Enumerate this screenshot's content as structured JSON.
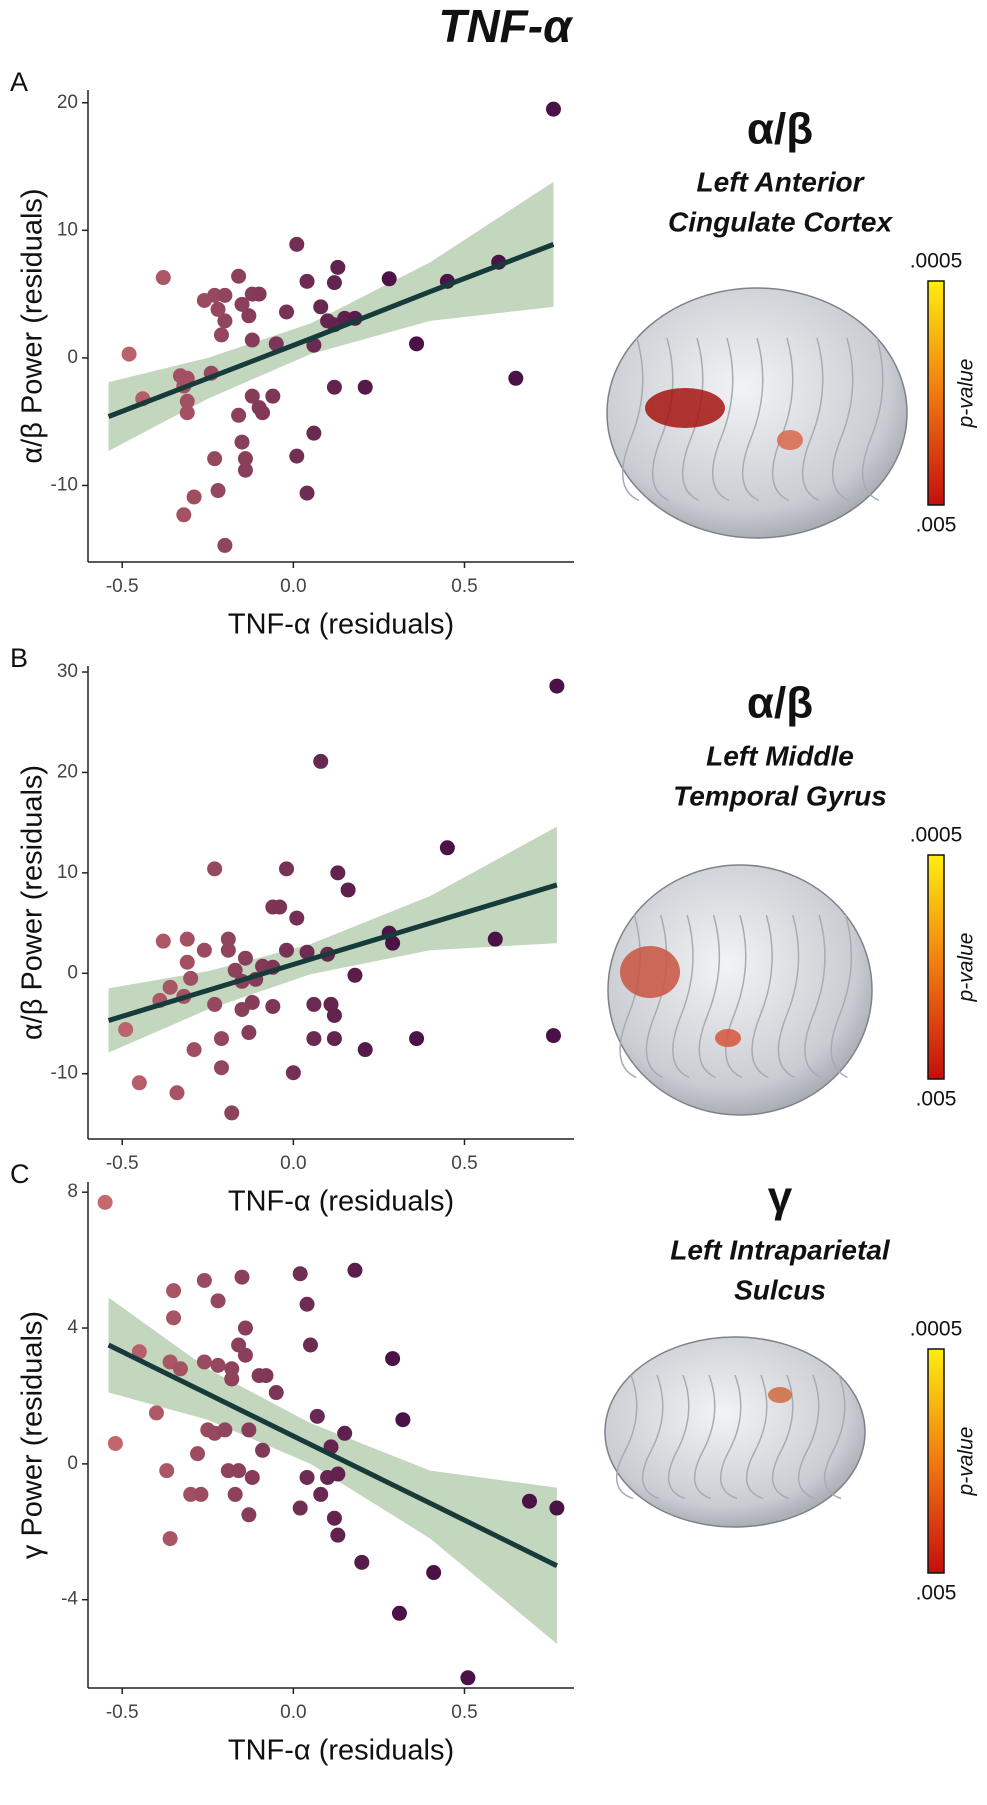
{
  "title": "TNF-α",
  "chart_data": [
    {
      "type": "scatter",
      "panel": "A",
      "x_label": "TNF-α (residuals)",
      "y_label": "α/β Power (residuals)",
      "xlim": [
        -0.6,
        0.82
      ],
      "ylim": [
        -16,
        21
      ],
      "xticks": [
        -0.5,
        {
          "value": 0,
          "label": "0.0"
        },
        0.5
      ],
      "yticks": [
        -10,
        0,
        10,
        20
      ],
      "color_low": "#cc6e70",
      "color_high": "#4a1246",
      "x": [
        0.76,
        -0.48,
        -0.38,
        -0.44,
        -0.33,
        -0.31,
        -0.32,
        -0.31,
        -0.31,
        -0.29,
        -0.32,
        -0.24,
        -0.23,
        -0.26,
        -0.2,
        -0.22,
        -0.2,
        -0.21,
        -0.16,
        -0.15,
        -0.12,
        -0.1,
        -0.13,
        -0.12,
        -0.23,
        -0.22,
        -0.2,
        -0.16,
        -0.15,
        -0.14,
        -0.14,
        -0.12,
        -0.1,
        -0.09,
        -0.06,
        -0.05,
        -0.02,
        0.01,
        0.01,
        0.04,
        0.04,
        0.06,
        0.06,
        0.08,
        0.1,
        0.12,
        0.13,
        0.12,
        0.15,
        0.18,
        0.12,
        0.21,
        0.28,
        0.36,
        0.45,
        0.6,
        0.65
      ],
      "y": [
        19.5,
        0.3,
        6.3,
        -3.2,
        -1.4,
        -1.6,
        -2.2,
        -3.4,
        -4.3,
        -10.9,
        -12.3,
        -1.2,
        4.9,
        4.5,
        4.9,
        3.8,
        2.9,
        1.8,
        6.4,
        4.2,
        5.0,
        5.0,
        3.3,
        1.4,
        -7.9,
        -10.4,
        -14.7,
        -4.5,
        -6.6,
        -7.9,
        -8.8,
        -3.0,
        -3.9,
        -4.3,
        -3.0,
        1.1,
        3.6,
        8.9,
        -7.7,
        -10.6,
        6.0,
        -5.9,
        1.0,
        4.0,
        2.9,
        5.9,
        7.1,
        2.6,
        3.1,
        3.1,
        -2.3,
        -2.3,
        6.2,
        1.1,
        6.0,
        7.5,
        -1.6
      ],
      "fit": {
        "x": [
          -0.54,
          -0.25,
          0.05,
          0.4,
          0.76
        ],
        "y": [
          -4.6,
          -1.6,
          1.5,
          5.2,
          8.9
        ],
        "lower": [
          -7.3,
          -3.2,
          0.3,
          2.9,
          4.0
        ],
        "upper": [
          -1.9,
          0.0,
          2.7,
          7.5,
          13.8
        ],
        "line_color": "#173b3b",
        "band_color": "#b9cfb3"
      },
      "brain": {
        "heading": "α/β",
        "region": [
          "Left Anterior",
          "Cingulate Cortex"
        ],
        "colorbar": {
          "top": ".0005",
          "bottom": ".005",
          "label": "p-value"
        }
      }
    },
    {
      "type": "scatter",
      "panel": "B",
      "x_label": "TNF-α (residuals)",
      "y_label": "α/β Power (residuals)",
      "xlim": [
        -0.6,
        0.82
      ],
      "ylim": [
        -16.5,
        30.6
      ],
      "xticks": [
        -0.5,
        {
          "value": 0,
          "label": "0.0"
        },
        0.5
      ],
      "yticks": [
        -10,
        0,
        10,
        20,
        30
      ],
      "color_low": "#cc6e70",
      "color_high": "#4a1246",
      "x": [
        0.77,
        0.08,
        -0.49,
        -0.45,
        -0.34,
        -0.39,
        -0.32,
        -0.31,
        -0.36,
        -0.3,
        -0.29,
        -0.26,
        -0.23,
        -0.23,
        -0.21,
        -0.21,
        -0.18,
        -0.19,
        -0.19,
        -0.17,
        -0.15,
        -0.14,
        -0.15,
        -0.13,
        -0.12,
        -0.11,
        -0.09,
        -0.06,
        -0.06,
        -0.06,
        -0.04,
        -0.02,
        -0.02,
        0.01,
        0.0,
        0.04,
        0.06,
        0.06,
        0.1,
        0.11,
        0.12,
        0.12,
        0.13,
        0.16,
        0.18,
        0.21,
        0.28,
        0.29,
        0.36,
        0.45,
        0.59,
        0.76,
        -0.31,
        -0.38
      ],
      "y": [
        28.6,
        21.1,
        -5.6,
        -10.9,
        -11.9,
        -2.7,
        -2.3,
        1.1,
        -1.4,
        -0.5,
        -7.6,
        2.3,
        10.4,
        -3.1,
        -6.5,
        -9.4,
        -13.9,
        2.3,
        3.4,
        0.3,
        -0.8,
        1.5,
        -3.6,
        -5.9,
        -2.9,
        -0.6,
        0.7,
        6.6,
        0.6,
        -3.3,
        6.6,
        10.4,
        2.3,
        5.5,
        -9.9,
        2.1,
        -3.1,
        -6.5,
        1.9,
        -3.1,
        -4.2,
        -6.5,
        10.0,
        8.3,
        -0.2,
        -7.6,
        4.0,
        3.0,
        -6.5,
        12.5,
        3.4,
        -6.2,
        3.4,
        3.2
      ],
      "fit": {
        "x": [
          -0.54,
          -0.25,
          0.05,
          0.4,
          0.77
        ],
        "y": [
          -4.7,
          -1.7,
          1.4,
          5.0,
          8.8
        ],
        "lower": [
          -7.9,
          -3.6,
          -0.1,
          2.3,
          3.0
        ],
        "upper": [
          -1.5,
          0.2,
          2.9,
          7.7,
          14.6
        ],
        "line_color": "#173b3b",
        "band_color": "#b9cfb3"
      },
      "brain": {
        "heading": "α/β",
        "region": [
          "Left Middle",
          "Temporal Gyrus"
        ],
        "colorbar": {
          "top": ".0005",
          "bottom": ".005",
          "label": "p-value"
        }
      }
    },
    {
      "type": "scatter",
      "panel": "C",
      "x_label": "TNF-α (residuals)",
      "y_label": "γ Power (residuals)",
      "xlim": [
        -0.6,
        0.82
      ],
      "ylim": [
        -6.6,
        8.3
      ],
      "xticks": [
        -0.5,
        {
          "value": 0,
          "label": "0.0"
        },
        0.5
      ],
      "yticks": [
        -4,
        0,
        4,
        8
      ],
      "color_low": "#cc6e70",
      "color_high": "#4a1246",
      "x": [
        -0.55,
        -0.52,
        -0.45,
        -0.4,
        -0.37,
        -0.36,
        -0.36,
        -0.35,
        -0.35,
        -0.33,
        -0.3,
        -0.28,
        -0.27,
        -0.26,
        -0.26,
        -0.25,
        -0.23,
        -0.22,
        -0.22,
        -0.2,
        -0.19,
        -0.18,
        -0.18,
        -0.17,
        -0.16,
        -0.16,
        -0.15,
        -0.14,
        -0.14,
        -0.13,
        -0.13,
        -0.12,
        -0.1,
        -0.09,
        -0.08,
        -0.05,
        0.02,
        0.02,
        0.04,
        0.04,
        0.05,
        0.07,
        0.08,
        0.1,
        0.11,
        0.12,
        0.13,
        0.13,
        0.15,
        0.18,
        0.2,
        0.29,
        0.31,
        0.32,
        0.41,
        0.51,
        0.69,
        0.77
      ],
      "y": [
        7.7,
        0.6,
        3.3,
        1.5,
        -0.2,
        -2.2,
        3.0,
        4.3,
        5.1,
        2.8,
        -0.9,
        0.3,
        -0.9,
        5.4,
        3.0,
        1.0,
        0.9,
        4.8,
        2.9,
        1.0,
        -0.2,
        2.5,
        2.8,
        -0.9,
        -0.2,
        3.5,
        5.5,
        4.0,
        3.2,
        1.0,
        -1.5,
        -0.4,
        2.6,
        0.4,
        2.6,
        2.1,
        5.6,
        -1.3,
        4.7,
        -0.4,
        3.5,
        1.4,
        -0.9,
        -0.4,
        0.5,
        -1.6,
        -0.3,
        -2.1,
        0.9,
        5.7,
        -2.9,
        3.1,
        -4.4,
        1.3,
        -3.2,
        -6.3,
        -1.1,
        -1.3
      ],
      "fit": {
        "x": [
          -0.54,
          -0.25,
          0.05,
          0.4,
          0.77
        ],
        "y": [
          3.5,
          2.06,
          0.57,
          -1.16,
          -3.0
        ],
        "lower": [
          2.1,
          1.3,
          0.0,
          -2.2,
          -5.3
        ],
        "upper": [
          4.9,
          2.8,
          1.2,
          -0.2,
          -0.7
        ],
        "line_color": "#173b3b",
        "band_color": "#b9cfb3"
      },
      "brain": {
        "heading": "γ",
        "region": [
          "Left Intraparietal",
          "Sulcus"
        ],
        "colorbar": {
          "top": ".0005",
          "bottom": ".005",
          "label": "p-value"
        }
      }
    }
  ]
}
